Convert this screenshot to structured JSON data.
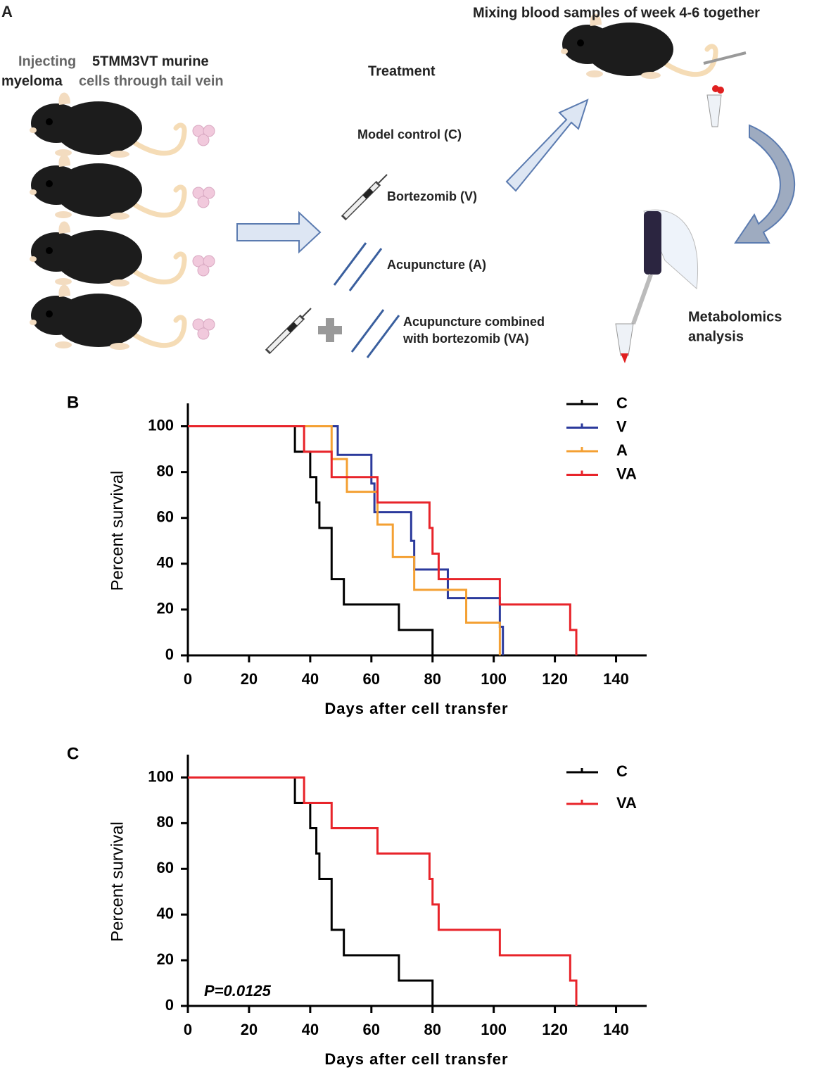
{
  "panel_a": {
    "label": "A",
    "injection": [
      "Injecting",
      "5TMM3VT murine",
      "myeloma",
      "cells through tail vein"
    ],
    "treatment_title": "Treatment",
    "groups": [
      "Model control (C)",
      "Bortezomib (V)",
      "Acupuncture (A)",
      "Acupuncture combined",
      "with bortezomib (VA)"
    ],
    "sampling": "Mixing blood samples of week 4-6 together",
    "analysis": [
      "Metabolomics",
      "analysis"
    ]
  },
  "chart_data": [
    {
      "type": "step",
      "panel": "B",
      "x_label": "Days after cell transfer",
      "y_label": "Percent survival",
      "xlim": [
        0,
        150
      ],
      "ylim": [
        0,
        110
      ],
      "xticks": [
        0,
        20,
        40,
        60,
        80,
        100,
        120,
        140
      ],
      "yticks": [
        0,
        20,
        40,
        60,
        80,
        100
      ],
      "series": [
        {
          "name": "C",
          "color": "#000000",
          "x": [
            0,
            35,
            40,
            42,
            43,
            47,
            51,
            69,
            80
          ],
          "values": [
            100,
            88.9,
            77.8,
            66.7,
            55.6,
            33.3,
            22.2,
            11.1,
            0
          ]
        },
        {
          "name": "V",
          "color": "#2b3a9c",
          "x": [
            0,
            49,
            60,
            61,
            73,
            74,
            85,
            102,
            103
          ],
          "values": [
            100,
            87.5,
            75,
            62.5,
            50,
            37.5,
            25,
            12.5,
            0
          ]
        },
        {
          "name": "A",
          "color": "#f4a033",
          "x": [
            0,
            47,
            52,
            62,
            67,
            74,
            91,
            102
          ],
          "values": [
            100,
            85.7,
            71.4,
            57.1,
            42.9,
            28.6,
            14.3,
            0
          ]
        },
        {
          "name": "VA",
          "color": "#e8242a",
          "x": [
            0,
            38,
            47,
            62,
            79,
            80,
            82,
            102,
            125,
            127
          ],
          "values": [
            100,
            88.9,
            77.8,
            66.7,
            55.6,
            44.4,
            33.3,
            22.2,
            11.1,
            0
          ]
        }
      ]
    },
    {
      "type": "step",
      "panel": "C",
      "x_label": "Days after cell transfer",
      "y_label": "Percent survival",
      "annotation": "P=0.0125",
      "xlim": [
        0,
        150
      ],
      "ylim": [
        0,
        110
      ],
      "xticks": [
        0,
        20,
        40,
        60,
        80,
        100,
        120,
        140
      ],
      "yticks": [
        0,
        20,
        40,
        60,
        80,
        100
      ],
      "series": [
        {
          "name": "C",
          "color": "#000000",
          "x": [
            0,
            35,
            40,
            42,
            43,
            47,
            51,
            69,
            80
          ],
          "values": [
            100,
            88.9,
            77.8,
            66.7,
            55.6,
            33.3,
            22.2,
            11.1,
            0
          ]
        },
        {
          "name": "VA",
          "color": "#e8242a",
          "x": [
            0,
            38,
            47,
            62,
            79,
            80,
            82,
            102,
            125,
            127
          ],
          "values": [
            100,
            88.9,
            77.8,
            66.7,
            55.6,
            44.4,
            33.3,
            22.2,
            11.1,
            0
          ]
        }
      ]
    }
  ]
}
